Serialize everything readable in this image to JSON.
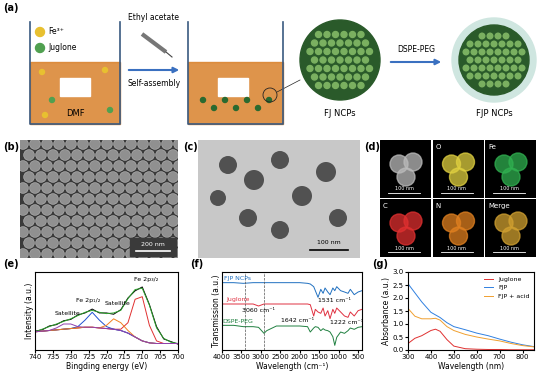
{
  "panels": {
    "a": {
      "label": "(a)",
      "texts": {
        "metal": "Fe³⁺",
        "ligand": "Juglone",
        "solvent": "DMF",
        "reagent": "Ethyl acetate",
        "process": "Self-assembly",
        "product1": "FJ NCPs",
        "coating": "DSPE-PEG",
        "product2": "FJP NCPs"
      }
    },
    "b": {
      "label": "(b)",
      "scale_bar": "200 nm"
    },
    "c": {
      "label": "(c)",
      "scale_bar": "100 nm"
    },
    "d": {
      "label": "(d)",
      "scale_bar": "100 nm",
      "maps": [
        null,
        "O",
        "Fe",
        "C",
        "N",
        "Merge"
      ]
    }
  },
  "chart_data": [
    {
      "label": "(e)",
      "type": "line",
      "x_label": "Bingding energy (eV)",
      "y_label": "Intensity (a.u.)",
      "x": [
        740,
        738,
        736,
        734,
        732,
        730,
        728,
        726,
        724,
        722,
        720,
        718,
        716,
        714,
        712,
        710,
        708,
        706,
        704,
        702,
        700
      ],
      "xlim": [
        740,
        700
      ],
      "xticks": [
        740,
        735,
        730,
        725,
        720,
        715,
        710,
        705,
        700
      ],
      "ylim": [
        0,
        1.2
      ],
      "tick_labels": "x",
      "series": [
        {
          "color": "#000000",
          "values": [
            0.29,
            0.31,
            0.37,
            0.39,
            0.45,
            0.47,
            0.54,
            0.57,
            0.63,
            0.57,
            0.57,
            0.55,
            0.62,
            0.8,
            0.91,
            0.97,
            0.7,
            0.36,
            0.17,
            0.13,
            0.09
          ]
        },
        {
          "color": "#2ca02c",
          "values": [
            0.28,
            0.32,
            0.36,
            0.4,
            0.44,
            0.48,
            0.53,
            0.58,
            0.61,
            0.58,
            0.56,
            0.57,
            0.61,
            0.79,
            0.93,
            0.95,
            0.69,
            0.34,
            0.18,
            0.12,
            0.1
          ]
        },
        {
          "color": "#888888",
          "values": [
            0.28,
            0.29,
            0.3,
            0.31,
            0.32,
            0.33,
            0.34,
            0.35,
            0.35,
            0.34,
            0.33,
            0.32,
            0.3,
            0.26,
            0.2,
            0.14,
            0.11,
            0.1,
            0.1,
            0.1,
            0.1
          ]
        },
        {
          "color": "#e03030",
          "values": [
            0.28,
            0.29,
            0.3,
            0.31,
            0.32,
            0.33,
            0.34,
            0.35,
            0.35,
            0.34,
            0.33,
            0.32,
            0.32,
            0.42,
            0.78,
            0.82,
            0.38,
            0.14,
            0.1,
            0.1,
            0.1
          ]
        },
        {
          "color": "#2050d0",
          "values": [
            0.28,
            0.29,
            0.3,
            0.31,
            0.32,
            0.33,
            0.36,
            0.46,
            0.58,
            0.46,
            0.36,
            0.32,
            0.3,
            0.26,
            0.2,
            0.14,
            0.11,
            0.1,
            0.1,
            0.1,
            0.1
          ]
        },
        {
          "color": "#f08020",
          "values": [
            0.28,
            0.29,
            0.3,
            0.31,
            0.32,
            0.33,
            0.34,
            0.35,
            0.35,
            0.34,
            0.38,
            0.48,
            0.42,
            0.3,
            0.2,
            0.14,
            0.11,
            0.1,
            0.1,
            0.1,
            0.1
          ]
        },
        {
          "color": "#9040b0",
          "values": [
            0.28,
            0.29,
            0.3,
            0.34,
            0.4,
            0.4,
            0.36,
            0.35,
            0.35,
            0.34,
            0.33,
            0.32,
            0.3,
            0.26,
            0.2,
            0.14,
            0.11,
            0.1,
            0.1,
            0.1,
            0.1
          ]
        }
      ],
      "annotations": [
        {
          "text": "Fe 2p₁/₂",
          "x": 725,
          "y": 0.76
        },
        {
          "text": "Satellite",
          "x": 731,
          "y": 0.56
        },
        {
          "text": "Satellite",
          "x": 717,
          "y": 0.72
        },
        {
          "text": "Fe 2p₃/₂",
          "x": 709,
          "y": 1.08
        }
      ]
    },
    {
      "label": "(f)",
      "type": "line",
      "x_label": "Wavelength (cm⁻¹)",
      "y_label": "Transmission (a.u.)",
      "x": [
        4000,
        3700,
        3450,
        3200,
        3060,
        2920,
        2850,
        2600,
        2300,
        2000,
        1800,
        1730,
        1642,
        1600,
        1531,
        1460,
        1400,
        1350,
        1280,
        1222,
        1150,
        1100,
        1050,
        950,
        850,
        760,
        700,
        600,
        500,
        400
      ],
      "xlim": [
        4000,
        400
      ],
      "xticks": [
        4000,
        3500,
        3000,
        2500,
        2000,
        1500,
        1000,
        500
      ],
      "ylim": [
        -0.05,
        1.12
      ],
      "tick_labels": "x",
      "reference_lines": [
        3420,
        2920
      ],
      "series": [
        {
          "name": "FJP NCPs",
          "color": "#2070c0",
          "values": [
            0.96,
            0.96,
            0.95,
            0.96,
            0.96,
            0.96,
            0.96,
            0.96,
            0.96,
            0.96,
            0.95,
            0.94,
            0.9,
            0.84,
            0.74,
            0.86,
            0.8,
            0.88,
            0.82,
            0.78,
            0.88,
            0.84,
            0.9,
            0.84,
            0.82,
            0.8,
            0.86,
            0.78,
            0.82,
            0.84
          ]
        },
        {
          "name": "Juglone",
          "color": "#e03040",
          "values": [
            0.64,
            0.64,
            0.64,
            0.64,
            0.61,
            0.64,
            0.64,
            0.64,
            0.64,
            0.64,
            0.64,
            0.63,
            0.46,
            0.56,
            0.52,
            0.5,
            0.58,
            0.46,
            0.54,
            0.42,
            0.56,
            0.5,
            0.58,
            0.52,
            0.46,
            0.44,
            0.52,
            0.46,
            0.54,
            0.56
          ]
        },
        {
          "name": "DSPE-PEG",
          "color": "#208040",
          "values": [
            0.32,
            0.32,
            0.3,
            0.3,
            0.29,
            0.2,
            0.24,
            0.31,
            0.31,
            0.31,
            0.3,
            0.22,
            0.28,
            0.3,
            0.29,
            0.24,
            0.27,
            0.25,
            0.24,
            0.22,
            0.15,
            0.02,
            0.14,
            0.22,
            0.2,
            0.24,
            0.28,
            0.26,
            0.29,
            0.3
          ]
        }
      ],
      "annotations": [
        {
          "text": "3060 cm⁻¹",
          "x": 3060,
          "y": 0.54
        },
        {
          "text": "1642 cm⁻¹",
          "x": 1642,
          "y": 0.4
        },
        {
          "text": "1531 cm⁻¹",
          "x": 1531,
          "y": 0.7
        },
        {
          "text": "1222 cm⁻¹",
          "x": 1222,
          "y": 0.36
        }
      ]
    },
    {
      "label": "(g)",
      "type": "line",
      "x_label": "Wavelength (nm)",
      "y_label": "Absorbance (a.u.)",
      "x": [
        300,
        330,
        360,
        400,
        420,
        440,
        470,
        500,
        550,
        600,
        650,
        700,
        750,
        800,
        850
      ],
      "xlim": [
        300,
        850
      ],
      "xticks": [
        300,
        400,
        500,
        600,
        700,
        800
      ],
      "ylim": [
        0,
        3.0
      ],
      "yticks": [
        {
          "value": 0,
          "label": "0.0"
        },
        {
          "value": 0.5,
          "label": "0.5"
        },
        {
          "value": 1,
          "label": "1.0"
        },
        {
          "value": 1.5,
          "label": "1.5"
        },
        {
          "value": 2,
          "label": "2.0"
        },
        {
          "value": 2.5,
          "label": "2.5"
        },
        {
          "value": 3,
          "label": "3.0"
        }
      ],
      "legend": "upper right",
      "series": [
        {
          "name": "Juglone",
          "color": "#e03030",
          "values": [
            0.25,
            0.45,
            0.55,
            0.75,
            0.8,
            0.72,
            0.4,
            0.15,
            0.05,
            0.03,
            0.02,
            0.02,
            0.01,
            0.01,
            0.01
          ]
        },
        {
          "name": "FJP",
          "color": "#3080e0",
          "values": [
            2.55,
            2.2,
            1.85,
            1.45,
            1.35,
            1.25,
            1.05,
            0.9,
            0.78,
            0.65,
            0.55,
            0.42,
            0.3,
            0.2,
            0.13
          ]
        },
        {
          "name": "FJP + acid",
          "color": "#f0a030",
          "values": [
            1.6,
            1.3,
            1.2,
            1.2,
            1.22,
            1.15,
            0.9,
            0.75,
            0.6,
            0.5,
            0.42,
            0.35,
            0.25,
            0.17,
            0.12
          ]
        }
      ]
    }
  ]
}
